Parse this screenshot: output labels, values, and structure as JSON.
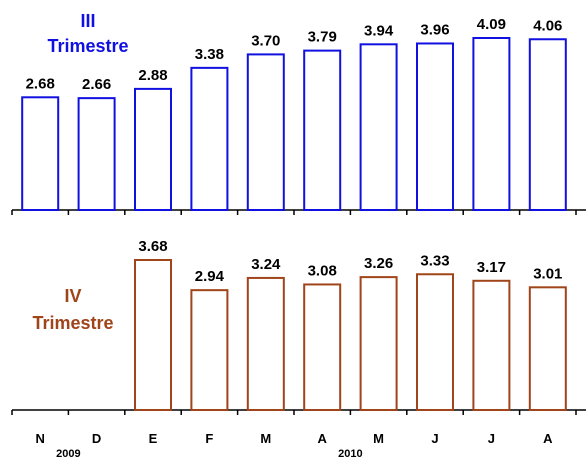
{
  "chart_data": [
    {
      "type": "bar",
      "title_lines": [
        "III",
        "Trimestre"
      ],
      "color": "#1010e0",
      "categories": [
        "N",
        "D",
        "E",
        "F",
        "M",
        "A",
        "M",
        "J",
        "J",
        "A"
      ],
      "values": [
        2.68,
        2.66,
        2.88,
        3.38,
        3.7,
        3.79,
        3.94,
        3.96,
        4.09,
        4.06
      ],
      "value_labels": [
        "2.68",
        "2.66",
        "2.88",
        "3.38",
        "3.70",
        "3.79",
        "3.94",
        "3.96",
        "4.09",
        "4.06"
      ],
      "ylim": [
        0,
        4.09
      ],
      "grid": false
    },
    {
      "type": "bar",
      "title_lines": [
        "IV",
        "Trimestre"
      ],
      "color": "#a0441a",
      "categories": [
        "N",
        "D",
        "E",
        "F",
        "M",
        "A",
        "M",
        "J",
        "J",
        "A"
      ],
      "values": [
        null,
        null,
        3.68,
        2.94,
        3.24,
        3.08,
        3.26,
        3.33,
        3.17,
        3.01
      ],
      "value_labels": [
        "",
        "",
        "3.68",
        "2.94",
        "3.24",
        "3.08",
        "3.26",
        "3.33",
        "3.17",
        "3.01"
      ],
      "ylim": [
        0,
        3.68
      ],
      "grid": false
    }
  ],
  "x_axis": {
    "categories": [
      "N",
      "D",
      "E",
      "F",
      "M",
      "A",
      "M",
      "J",
      "J",
      "A"
    ],
    "year_labels": [
      {
        "text": "2009",
        "index": 0.5
      },
      {
        "text": "2010",
        "index": 5.5
      }
    ]
  }
}
